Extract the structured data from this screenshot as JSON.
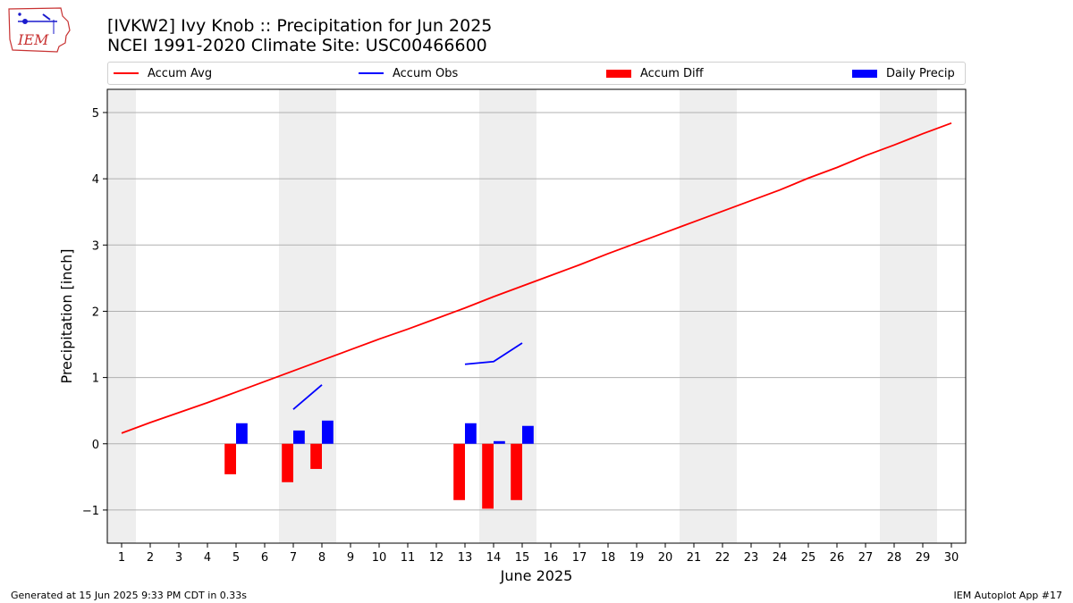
{
  "header": {
    "title_line1": "[IVKW2] Ivy Knob :: Precipitation for Jun 2025",
    "title_line2": "NCEI 1991-2020 Climate Site: USC00466600",
    "logo_text": "IEM"
  },
  "footer": {
    "left": "Generated at 15 Jun 2025 9:33 PM CDT in 0.33s",
    "right": "IEM Autoplot App #17"
  },
  "colors": {
    "avg": "#ff0000",
    "obs": "#0000ff",
    "diff": "#ff0000",
    "daily": "#0000ff",
    "weekend_band": "#eeeeee",
    "grid": "#b0b0b0"
  },
  "chart_data": {
    "type": "bar",
    "xlabel": "June 2025",
    "ylabel": "Precipitation [inch]",
    "xlim": [
      0.5,
      30.5
    ],
    "ylim": [
      -1.5,
      5.35
    ],
    "x_ticks": [
      1,
      2,
      3,
      4,
      5,
      6,
      7,
      8,
      9,
      10,
      11,
      12,
      13,
      14,
      15,
      16,
      17,
      18,
      19,
      20,
      21,
      22,
      23,
      24,
      25,
      26,
      27,
      28,
      29,
      30
    ],
    "y_ticks": [
      -1,
      0,
      1,
      2,
      3,
      4,
      5
    ],
    "y_tick_labels": [
      "−1",
      "0",
      "1",
      "2",
      "3",
      "4",
      "5"
    ],
    "grid": "horizontal",
    "legend_placement": "top",
    "weekend_days": [
      1,
      7,
      8,
      14,
      15,
      21,
      22,
      28,
      29
    ],
    "series": [
      {
        "name": "Accum Avg",
        "kind": "line",
        "x": [
          1,
          2,
          3,
          4,
          5,
          6,
          7,
          8,
          9,
          10,
          11,
          12,
          13,
          14,
          15,
          16,
          17,
          18,
          19,
          20,
          21,
          22,
          23,
          24,
          25,
          26,
          27,
          28,
          29,
          30
        ],
        "values": [
          0.16,
          0.32,
          0.47,
          0.62,
          0.78,
          0.94,
          1.1,
          1.26,
          1.42,
          1.58,
          1.73,
          1.89,
          2.05,
          2.22,
          2.38,
          2.54,
          2.7,
          2.87,
          3.03,
          3.19,
          3.35,
          3.51,
          3.67,
          3.83,
          4.01,
          4.17,
          4.35,
          4.51,
          4.68,
          4.84
        ]
      },
      {
        "name": "Accum Obs",
        "kind": "line",
        "segments": [
          {
            "x": [
              7,
              8
            ],
            "values": [
              0.52,
              0.89
            ]
          },
          {
            "x": [
              13,
              14,
              15
            ],
            "values": [
              1.2,
              1.24,
              1.52
            ]
          }
        ]
      },
      {
        "name": "Accum Diff",
        "kind": "bar",
        "x": [
          5,
          7,
          8,
          13,
          14,
          15
        ],
        "values": [
          -0.46,
          -0.58,
          -0.38,
          -0.85,
          -0.98,
          -0.85
        ]
      },
      {
        "name": "Daily Precip",
        "kind": "bar",
        "x": [
          5,
          7,
          8,
          13,
          14,
          15
        ],
        "values": [
          0.31,
          0.2,
          0.35,
          0.31,
          0.04,
          0.27
        ]
      }
    ]
  }
}
